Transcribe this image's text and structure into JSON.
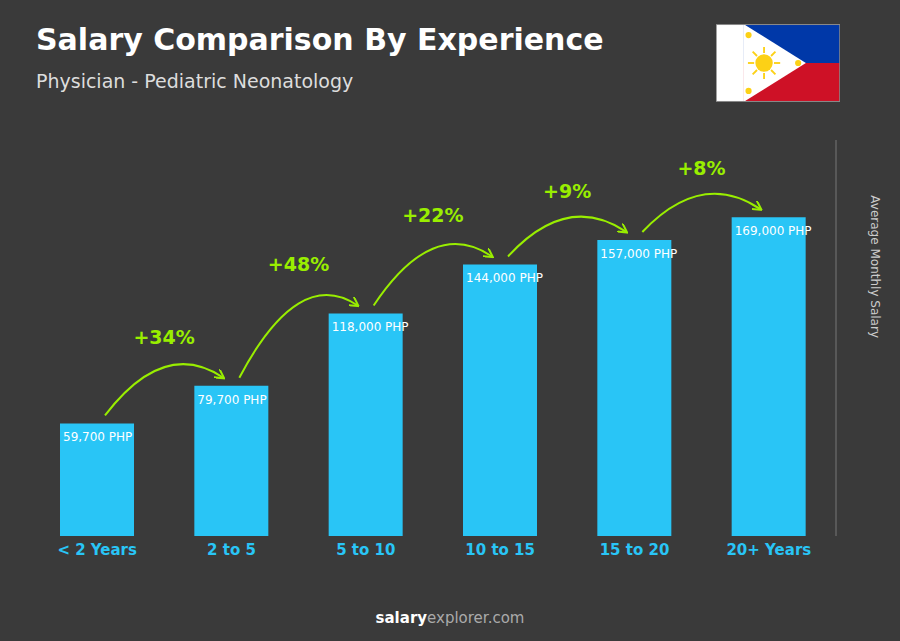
{
  "chart_data": {
    "type": "bar",
    "title": "Salary Comparison By Experience",
    "subtitle": "Physician - Pediatric Neonatology",
    "categories": [
      "< 2 Years",
      "2 to 5",
      "5 to 10",
      "10 to 15",
      "15 to 20",
      "20+ Years"
    ],
    "values": [
      59700,
      79700,
      118000,
      144000,
      157000,
      169000
    ],
    "value_labels": [
      "59,700 PHP",
      "79,700 PHP",
      "118,000 PHP",
      "144,000 PHP",
      "157,000 PHP",
      "169,000 PHP"
    ],
    "data_labels": true,
    "annotations": [
      "+34%",
      "+48%",
      "+22%",
      "+9%",
      "+8%"
    ],
    "ylabel": "Average Monthly Salary",
    "footer": [
      "salary",
      "explorer.com"
    ],
    "color": "#29c5f6",
    "ylim": [
      0,
      210000
    ],
    "tick_labels": "x",
    "grid": false
  }
}
